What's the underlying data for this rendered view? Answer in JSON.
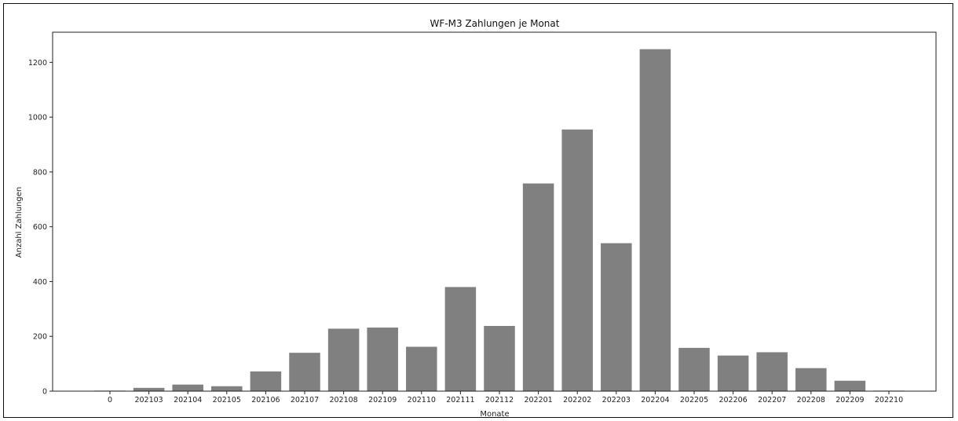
{
  "chart_data": {
    "type": "bar",
    "title": "WF-M3 Zahlungen je Monat",
    "xlabel": "Monate",
    "ylabel": "Anzahl Zahlungen",
    "categories": [
      "0",
      "202103",
      "202104",
      "202105",
      "202106",
      "202107",
      "202108",
      "202109",
      "202110",
      "202111",
      "202112",
      "202201",
      "202202",
      "202203",
      "202204",
      "202205",
      "202206",
      "202207",
      "202208",
      "202209",
      "202210"
    ],
    "values": [
      2,
      12,
      24,
      18,
      72,
      140,
      228,
      232,
      162,
      380,
      238,
      758,
      955,
      540,
      1248,
      158,
      130,
      142,
      84,
      38,
      2
    ],
    "ylim": [
      0,
      1310
    ],
    "yticks": [
      0,
      200,
      400,
      600,
      800,
      1000,
      1200
    ],
    "grid": false,
    "bar_color": "#808080"
  }
}
